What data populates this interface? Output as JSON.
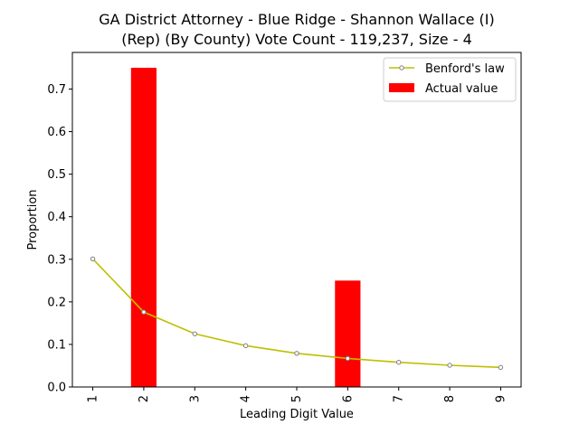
{
  "chart_data": {
    "type": "bar",
    "title": [
      "GA District Attorney - Blue Ridge - Shannon Wallace (I)",
      "(Rep) (By County) Vote Count - 119,237, Size - 4"
    ],
    "xlabel": "Leading Digit Value",
    "ylabel": "Proportion",
    "categories": [
      "1",
      "2",
      "3",
      "4",
      "5",
      "6",
      "7",
      "8",
      "9"
    ],
    "ylim": [
      0,
      0.786
    ],
    "yticks": [
      0.0,
      0.1,
      0.2,
      0.3,
      0.4,
      0.5,
      0.6,
      0.7
    ],
    "ytick_labels": [
      "0.0",
      "0.1",
      "0.2",
      "0.3",
      "0.4",
      "0.5",
      "0.6",
      "0.7"
    ],
    "grid": false,
    "legend_position": "top-right",
    "series": [
      {
        "name": "Benford's law",
        "kind": "line",
        "color": "#bfbf00",
        "marker_color": "#808080",
        "values": [
          0.301,
          0.176,
          0.125,
          0.097,
          0.079,
          0.067,
          0.058,
          0.051,
          0.046
        ]
      },
      {
        "name": "Actual value",
        "kind": "bar",
        "color": "#ff0000",
        "values": [
          0,
          0.75,
          0,
          0,
          0,
          0.25,
          0,
          0,
          0
        ]
      }
    ]
  }
}
